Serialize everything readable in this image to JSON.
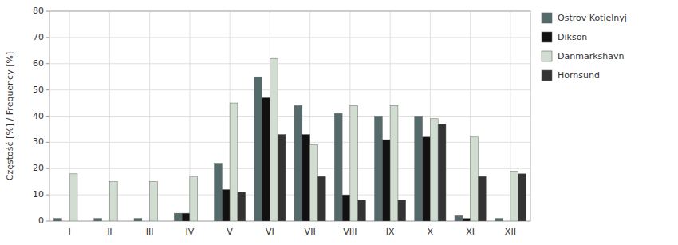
{
  "chart_data": {
    "type": "bar",
    "categories": [
      "I",
      "II",
      "III",
      "IV",
      "V",
      "VI",
      "VII",
      "VIII",
      "IX",
      "X",
      "XI",
      "XII"
    ],
    "series": [
      {
        "name": "Ostrov Kotielnyj",
        "color": "#556b6b",
        "values": [
          1,
          1,
          1,
          3,
          22,
          55,
          44,
          41,
          40,
          40,
          2,
          1
        ]
      },
      {
        "name": "Dikson",
        "color": "#111111",
        "values": [
          0,
          0,
          0,
          3,
          12,
          47,
          33,
          10,
          31,
          32,
          1,
          0
        ]
      },
      {
        "name": "Danmarkshavn",
        "color": "#d0ddd0",
        "values": [
          18,
          15,
          15,
          17,
          45,
          62,
          29,
          44,
          44,
          39,
          32,
          19
        ]
      },
      {
        "name": "Hornsund",
        "color": "#333333",
        "values": [
          0,
          0,
          0,
          0,
          11,
          33,
          17,
          8,
          8,
          37,
          17,
          18
        ]
      }
    ],
    "ylabel": "Częstość [%] / Frequency [%]",
    "ylim": [
      0,
      80
    ],
    "yticks": [
      0,
      10,
      20,
      30,
      40,
      50,
      60,
      70,
      80
    ],
    "grid": true,
    "legend": "upper right"
  }
}
